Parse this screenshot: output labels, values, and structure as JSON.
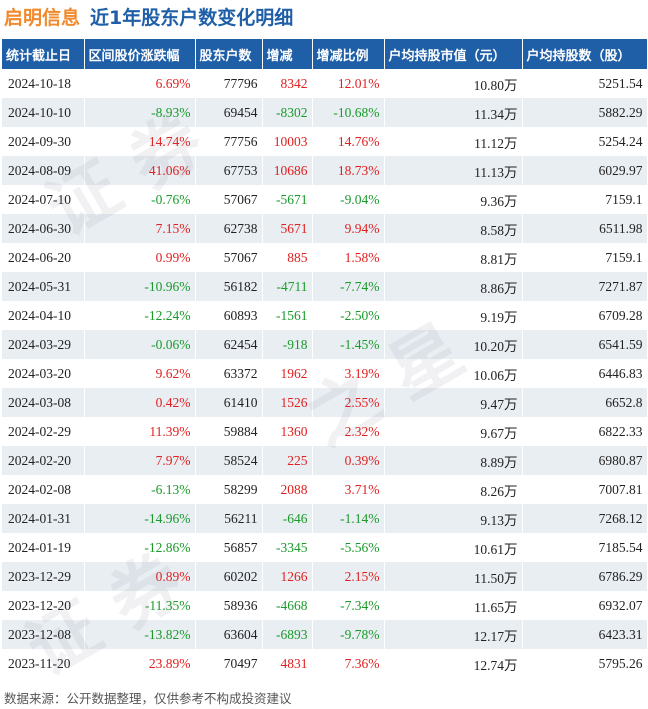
{
  "header": {
    "company": "启明信息",
    "subtitle": "近1年股东户数变化明细"
  },
  "columns": [
    "统计截止日",
    "区间股价涨跌幅",
    "股东户数",
    "增减",
    "增减比例",
    "户均持股市值（元）",
    "户均持股数（股）"
  ],
  "rows": [
    {
      "date": "2024-10-18",
      "change": "6.69%",
      "holders": "77796",
      "delta": "8342",
      "ratio": "12.01%",
      "value": "10.80万",
      "shares": "5251.54",
      "change_dir": "up",
      "delta_dir": "up"
    },
    {
      "date": "2024-10-10",
      "change": "-8.93%",
      "holders": "69454",
      "delta": "-8302",
      "ratio": "-10.68%",
      "value": "11.34万",
      "shares": "5882.29",
      "change_dir": "down",
      "delta_dir": "down"
    },
    {
      "date": "2024-09-30",
      "change": "14.74%",
      "holders": "77756",
      "delta": "10003",
      "ratio": "14.76%",
      "value": "11.12万",
      "shares": "5254.24",
      "change_dir": "up",
      "delta_dir": "up"
    },
    {
      "date": "2024-08-09",
      "change": "41.06%",
      "holders": "67753",
      "delta": "10686",
      "ratio": "18.73%",
      "value": "11.13万",
      "shares": "6029.97",
      "change_dir": "up",
      "delta_dir": "up"
    },
    {
      "date": "2024-07-10",
      "change": "-0.76%",
      "holders": "57067",
      "delta": "-5671",
      "ratio": "-9.04%",
      "value": "9.36万",
      "shares": "7159.1",
      "change_dir": "down",
      "delta_dir": "down"
    },
    {
      "date": "2024-06-30",
      "change": "7.15%",
      "holders": "62738",
      "delta": "5671",
      "ratio": "9.94%",
      "value": "8.58万",
      "shares": "6511.98",
      "change_dir": "up",
      "delta_dir": "up"
    },
    {
      "date": "2024-06-20",
      "change": "0.99%",
      "holders": "57067",
      "delta": "885",
      "ratio": "1.58%",
      "value": "8.81万",
      "shares": "7159.1",
      "change_dir": "up",
      "delta_dir": "up"
    },
    {
      "date": "2024-05-31",
      "change": "-10.96%",
      "holders": "56182",
      "delta": "-4711",
      "ratio": "-7.74%",
      "value": "8.86万",
      "shares": "7271.87",
      "change_dir": "down",
      "delta_dir": "down"
    },
    {
      "date": "2024-04-10",
      "change": "-12.24%",
      "holders": "60893",
      "delta": "-1561",
      "ratio": "-2.50%",
      "value": "9.19万",
      "shares": "6709.28",
      "change_dir": "down",
      "delta_dir": "down"
    },
    {
      "date": "2024-03-29",
      "change": "-0.06%",
      "holders": "62454",
      "delta": "-918",
      "ratio": "-1.45%",
      "value": "10.20万",
      "shares": "6541.59",
      "change_dir": "down",
      "delta_dir": "down"
    },
    {
      "date": "2024-03-20",
      "change": "9.62%",
      "holders": "63372",
      "delta": "1962",
      "ratio": "3.19%",
      "value": "10.06万",
      "shares": "6446.83",
      "change_dir": "up",
      "delta_dir": "up"
    },
    {
      "date": "2024-03-08",
      "change": "0.42%",
      "holders": "61410",
      "delta": "1526",
      "ratio": "2.55%",
      "value": "9.47万",
      "shares": "6652.8",
      "change_dir": "up",
      "delta_dir": "up"
    },
    {
      "date": "2024-02-29",
      "change": "11.39%",
      "holders": "59884",
      "delta": "1360",
      "ratio": "2.32%",
      "value": "9.67万",
      "shares": "6822.33",
      "change_dir": "up",
      "delta_dir": "up"
    },
    {
      "date": "2024-02-20",
      "change": "7.97%",
      "holders": "58524",
      "delta": "225",
      "ratio": "0.39%",
      "value": "8.89万",
      "shares": "6980.87",
      "change_dir": "up",
      "delta_dir": "up"
    },
    {
      "date": "2024-02-08",
      "change": "-6.13%",
      "holders": "58299",
      "delta": "2088",
      "ratio": "3.71%",
      "value": "8.26万",
      "shares": "7007.81",
      "change_dir": "down",
      "delta_dir": "up"
    },
    {
      "date": "2024-01-31",
      "change": "-14.96%",
      "holders": "56211",
      "delta": "-646",
      "ratio": "-1.14%",
      "value": "9.13万",
      "shares": "7268.12",
      "change_dir": "down",
      "delta_dir": "down"
    },
    {
      "date": "2024-01-19",
      "change": "-12.86%",
      "holders": "56857",
      "delta": "-3345",
      "ratio": "-5.56%",
      "value": "10.61万",
      "shares": "7185.54",
      "change_dir": "down",
      "delta_dir": "down"
    },
    {
      "date": "2023-12-29",
      "change": "0.89%",
      "holders": "60202",
      "delta": "1266",
      "ratio": "2.15%",
      "value": "11.50万",
      "shares": "6786.29",
      "change_dir": "up",
      "delta_dir": "up"
    },
    {
      "date": "2023-12-20",
      "change": "-11.35%",
      "holders": "58936",
      "delta": "-4668",
      "ratio": "-7.34%",
      "value": "11.65万",
      "shares": "6932.07",
      "change_dir": "down",
      "delta_dir": "down"
    },
    {
      "date": "2023-12-08",
      "change": "-13.82%",
      "holders": "63604",
      "delta": "-6893",
      "ratio": "-9.78%",
      "value": "12.17万",
      "shares": "6423.31",
      "change_dir": "down",
      "delta_dir": "down"
    },
    {
      "date": "2023-11-20",
      "change": "23.89%",
      "holders": "70497",
      "delta": "4831",
      "ratio": "7.36%",
      "value": "12.74万",
      "shares": "5795.26",
      "change_dir": "up",
      "delta_dir": "up"
    }
  ],
  "footer": "数据来源：公开数据整理，仅供参考不构成投资建议",
  "colors": {
    "header_bg": "#1f5fa8",
    "up": "#e02020",
    "down": "#1a9a2a",
    "company": "#f08a2c",
    "stripe": "#e9eef3"
  }
}
